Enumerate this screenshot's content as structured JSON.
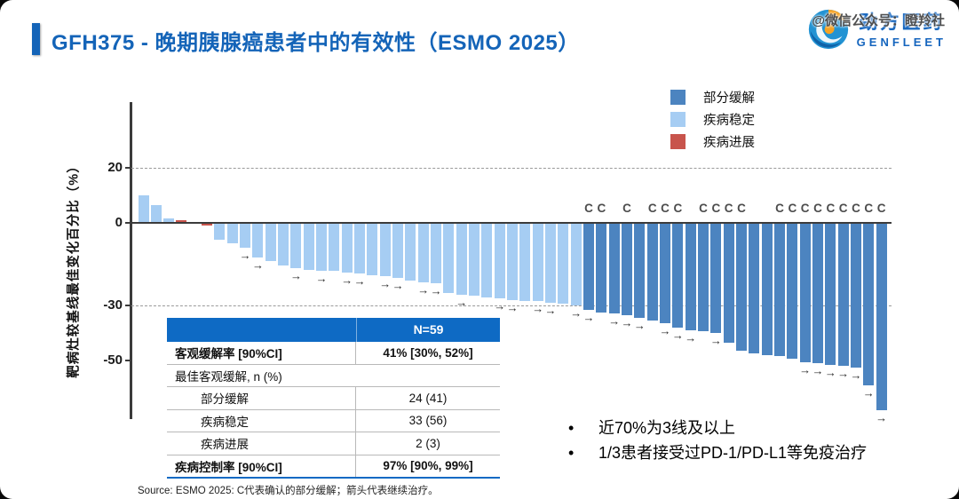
{
  "header": {
    "title": "GFH375 - 晚期胰腺癌患者中的有效性（ESMO 2025）"
  },
  "logo": {
    "company_cn": "劲方医药",
    "company_en": "GENFLEET"
  },
  "watermark": "@微信公众号：瞪羚社",
  "legend": [
    {
      "key": "pr",
      "label": "部分缓解",
      "color": "#4C84C0"
    },
    {
      "key": "sd",
      "label": "疾病稳定",
      "color": "#A6CDF3"
    },
    {
      "key": "pd",
      "label": "疾病进展",
      "color": "#C8544C"
    }
  ],
  "chart_data": {
    "type": "bar",
    "subtype": "waterfall",
    "title": "",
    "xlabel": "",
    "ylabel": "靶病灶较基线最佳变化百分比（%）",
    "n": 59,
    "ylim": [
      -70,
      45
    ],
    "yticks": [
      20,
      0,
      -30,
      -50
    ],
    "gridlines": [
      20,
      -30
    ],
    "legend_position": "top-right",
    "annotations": {
      "confirmed_marker": "C",
      "continuing_marker": "→"
    },
    "categories": {
      "pr": "部分缓解",
      "sd": "疾病稳定",
      "pd": "疾病进展"
    },
    "bars": [
      {
        "v": 10,
        "cat": "sd"
      },
      {
        "v": 6.5,
        "cat": "sd"
      },
      {
        "v": 1.5,
        "cat": "sd"
      },
      {
        "v": 1,
        "cat": "pd"
      },
      {
        "v": 0,
        "cat": "sd"
      },
      {
        "v": -1,
        "cat": "pd"
      },
      {
        "v": -6,
        "cat": "sd"
      },
      {
        "v": -7.5,
        "cat": "sd"
      },
      {
        "v": -9,
        "cat": "sd",
        "cont": true
      },
      {
        "v": -12.5,
        "cat": "sd",
        "cont": true
      },
      {
        "v": -14,
        "cat": "sd"
      },
      {
        "v": -15.5,
        "cat": "sd"
      },
      {
        "v": -16.5,
        "cat": "sd",
        "cont": true
      },
      {
        "v": -17,
        "cat": "sd"
      },
      {
        "v": -17.5,
        "cat": "sd",
        "cont": true
      },
      {
        "v": -17.5,
        "cat": "sd"
      },
      {
        "v": -18,
        "cat": "sd",
        "cont": true
      },
      {
        "v": -18.5,
        "cat": "sd",
        "cont": true
      },
      {
        "v": -19,
        "cat": "sd"
      },
      {
        "v": -19.5,
        "cat": "sd",
        "cont": true
      },
      {
        "v": -20,
        "cat": "sd",
        "cont": true
      },
      {
        "v": -21,
        "cat": "sd"
      },
      {
        "v": -21.5,
        "cat": "sd",
        "cont": true
      },
      {
        "v": -22,
        "cat": "sd",
        "cont": true
      },
      {
        "v": -25.5,
        "cat": "sd"
      },
      {
        "v": -26,
        "cat": "sd",
        "cont": true
      },
      {
        "v": -26.5,
        "cat": "sd"
      },
      {
        "v": -27,
        "cat": "sd"
      },
      {
        "v": -27.5,
        "cat": "sd",
        "cont": true
      },
      {
        "v": -28,
        "cat": "sd",
        "cont": true
      },
      {
        "v": -28.5,
        "cat": "sd"
      },
      {
        "v": -28.5,
        "cat": "sd",
        "cont": true
      },
      {
        "v": -29,
        "cat": "sd",
        "cont": true
      },
      {
        "v": -29.5,
        "cat": "sd"
      },
      {
        "v": -30,
        "cat": "sd",
        "cont": true
      },
      {
        "v": -31.5,
        "cat": "pr",
        "c": true,
        "cont": true
      },
      {
        "v": -32.5,
        "cat": "pr",
        "c": true
      },
      {
        "v": -33,
        "cat": "pr",
        "cont": true
      },
      {
        "v": -33.5,
        "cat": "pr",
        "c": true,
        "cont": true
      },
      {
        "v": -34.5,
        "cat": "pr",
        "cont": true
      },
      {
        "v": -35.5,
        "cat": "pr",
        "c": true
      },
      {
        "v": -36.5,
        "cat": "pr",
        "c": true,
        "cont": true
      },
      {
        "v": -38,
        "cat": "pr",
        "c": true,
        "cont": true
      },
      {
        "v": -39,
        "cat": "pr",
        "cont": true
      },
      {
        "v": -39.5,
        "cat": "pr",
        "c": true
      },
      {
        "v": -40,
        "cat": "pr",
        "c": true,
        "cont": true
      },
      {
        "v": -43.5,
        "cat": "pr",
        "c": true
      },
      {
        "v": -46.5,
        "cat": "pr",
        "c": true
      },
      {
        "v": -47.5,
        "cat": "pr"
      },
      {
        "v": -48,
        "cat": "pr"
      },
      {
        "v": -48.5,
        "cat": "pr",
        "c": true
      },
      {
        "v": -49.5,
        "cat": "pr",
        "c": true
      },
      {
        "v": -50.5,
        "cat": "pr",
        "c": true,
        "cont": true
      },
      {
        "v": -51,
        "cat": "pr",
        "c": true,
        "cont": true
      },
      {
        "v": -51.5,
        "cat": "pr",
        "c": true,
        "cont": true
      },
      {
        "v": -52,
        "cat": "pr",
        "c": true,
        "cont": true
      },
      {
        "v": -52.5,
        "cat": "pr",
        "c": true,
        "cont": true
      },
      {
        "v": -59,
        "cat": "pr",
        "c": true,
        "cont": true
      },
      {
        "v": -68,
        "cat": "pr",
        "c": true,
        "cont": true
      }
    ]
  },
  "table": {
    "column_header": "N=59",
    "rows": [
      {
        "label": "客观缓解率 [90%CI]",
        "value": "41% [30%, 52%]",
        "style": "bold"
      },
      {
        "label": "最佳客观缓解, n (%)",
        "value": "",
        "style": "span"
      },
      {
        "label": "部分缓解",
        "value": "24 (41)",
        "style": "indent"
      },
      {
        "label": "疾病稳定",
        "value": "33 (56)",
        "style": "indent"
      },
      {
        "label": "疾病进展",
        "value": "2 (3)",
        "style": "indent"
      },
      {
        "label": "疾病控制率 [90%CI]",
        "value": "97% [90%, 99%]",
        "style": "bold"
      }
    ]
  },
  "bullets": [
    "近70%为3线及以上",
    "1/3患者接受过PD-1/PD-L1等免疫治疗"
  ],
  "source": "Source: ESMO 2025: C代表确认的部分缓解；箭头代表继续治疗。"
}
